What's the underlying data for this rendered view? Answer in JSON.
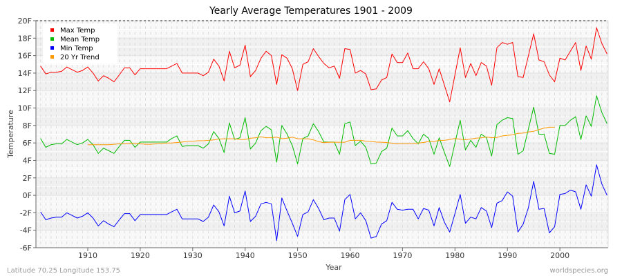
{
  "chart_data": {
    "type": "line",
    "title": "Yearly Average Temperatures 1901 - 2009",
    "xlabel": "Year",
    "ylabel": "Temperature",
    "xlim": [
      1900,
      2009
    ],
    "ylim": [
      -6,
      20
    ],
    "x_ticks": [
      "1910",
      "1920",
      "1930",
      "1940",
      "1950",
      "1960",
      "1970",
      "1980",
      "1990",
      "2000"
    ],
    "y_ticks": [
      "-6F",
      "-4F",
      "-2F",
      "0F",
      "2F",
      "4F",
      "6F",
      "8F",
      "10F",
      "12F",
      "14F",
      "16F",
      "18F",
      "20F"
    ],
    "grid": true,
    "legend_position": "top-left",
    "x_start": 1901,
    "series": [
      {
        "name": "Max Temp",
        "color": "#ff0000",
        "start": 1901,
        "values": [
          14.8,
          13.9,
          14.1,
          14.1,
          14.2,
          14.7,
          14.4,
          14.1,
          14.3,
          14.7,
          14.0,
          13.1,
          13.7,
          13.4,
          13.0,
          13.8,
          14.6,
          14.6,
          13.8,
          14.5,
          14.5,
          14.5,
          14.5,
          14.5,
          14.5,
          14.8,
          15.1,
          14.0,
          14.0,
          14.0,
          14.0,
          13.7,
          14.1,
          15.6,
          14.8,
          13.1,
          16.5,
          14.6,
          14.9,
          17.2,
          13.6,
          14.3,
          15.7,
          16.5,
          16.0,
          12.7,
          16.1,
          15.7,
          14.5,
          12.0,
          15.0,
          15.3,
          16.8,
          15.9,
          15.1,
          14.6,
          14.8,
          13.4,
          16.8,
          16.7,
          14.0,
          14.3,
          13.9,
          12.1,
          12.2,
          13.2,
          13.5,
          16.2,
          15.2,
          15.2,
          16.3,
          14.5,
          14.5,
          15.3,
          14.5,
          12.7,
          14.5,
          12.6,
          10.7,
          13.8,
          16.9,
          13.5,
          15.1,
          13.7,
          15.2,
          14.8,
          12.6,
          16.9,
          17.5,
          17.3,
          17.5,
          13.6,
          13.5,
          16.0,
          18.5,
          15.5,
          15.3,
          13.8,
          13.0,
          15.7,
          15.5,
          16.5,
          17.5,
          14.3,
          17.1,
          15.6,
          19.2,
          17.4,
          16.2
        ]
      },
      {
        "name": "Mean Temp",
        "color": "#00bb00",
        "start": 1901,
        "values": [
          6.5,
          5.5,
          5.8,
          5.9,
          5.9,
          6.4,
          6.1,
          5.8,
          6.0,
          6.4,
          5.8,
          4.8,
          5.4,
          5.1,
          4.8,
          5.6,
          6.3,
          6.3,
          5.5,
          6.1,
          6.1,
          6.1,
          6.1,
          6.1,
          6.1,
          6.5,
          6.8,
          5.6,
          5.7,
          5.7,
          5.7,
          5.4,
          5.9,
          7.3,
          6.5,
          4.9,
          8.3,
          6.4,
          6.6,
          8.9,
          5.3,
          6.0,
          7.4,
          7.9,
          7.5,
          3.8,
          8.0,
          7.0,
          5.7,
          3.6,
          6.5,
          6.8,
          8.2,
          7.3,
          6.1,
          6.1,
          6.1,
          4.7,
          8.2,
          8.4,
          5.7,
          6.2,
          5.5,
          3.6,
          3.7,
          5.0,
          5.4,
          7.7,
          6.8,
          6.8,
          7.4,
          6.5,
          5.9,
          7.0,
          6.5,
          4.7,
          6.6,
          4.9,
          3.3,
          6.0,
          8.6,
          5.2,
          6.3,
          5.5,
          7.0,
          6.6,
          4.5,
          8.1,
          8.6,
          8.9,
          8.8,
          4.7,
          5.1,
          7.6,
          10.1,
          7.0,
          7.0,
          4.8,
          4.7,
          8.0,
          8.0,
          8.6,
          9.0,
          6.4,
          9.1,
          7.9,
          11.4,
          9.5,
          8.2
        ]
      },
      {
        "name": "Min Temp",
        "color": "#0000ff",
        "start": 1901,
        "values": [
          -1.9,
          -2.8,
          -2.6,
          -2.5,
          -2.5,
          -2.0,
          -2.3,
          -2.6,
          -2.4,
          -2.0,
          -2.6,
          -3.5,
          -2.9,
          -3.3,
          -3.6,
          -2.8,
          -2.1,
          -2.1,
          -2.9,
          -2.2,
          -2.2,
          -2.2,
          -2.2,
          -2.2,
          -2.2,
          -1.9,
          -1.6,
          -2.7,
          -2.7,
          -2.7,
          -2.7,
          -3.0,
          -2.5,
          -1.1,
          -1.9,
          -3.5,
          -0.1,
          -2.0,
          -1.8,
          0.5,
          -3.0,
          -2.4,
          -1.0,
          -0.8,
          -1.0,
          -5.2,
          -0.3,
          -1.8,
          -3.2,
          -4.7,
          -2.2,
          -1.9,
          -0.5,
          -1.5,
          -2.8,
          -2.6,
          -2.6,
          -4.1,
          -0.5,
          0.1,
          -2.7,
          -2.0,
          -2.9,
          -4.9,
          -4.7,
          -3.3,
          -2.9,
          -0.8,
          -1.6,
          -1.7,
          -1.6,
          -1.6,
          -2.7,
          -1.5,
          -1.7,
          -3.5,
          -1.4,
          -3.1,
          -4.2,
          -2.1,
          0.1,
          -3.2,
          -2.5,
          -2.7,
          -1.4,
          -1.8,
          -3.7,
          -0.9,
          -0.6,
          0.4,
          -0.1,
          -4.2,
          -3.3,
          -1.4,
          1.6,
          -1.6,
          -1.5,
          -4.3,
          -3.6,
          0.1,
          0.2,
          0.6,
          0.4,
          -1.6,
          1.2,
          -0.1,
          3.5,
          1.3,
          0.0
        ]
      },
      {
        "name": "20 Yr Trend",
        "color": "#ff9900",
        "start": 1910,
        "values": [
          5.8,
          5.8,
          5.8,
          5.8,
          5.8,
          5.85,
          5.9,
          5.9,
          5.95,
          5.95,
          5.9,
          5.85,
          5.85,
          5.9,
          5.95,
          6.0,
          6.0,
          6.05,
          6.1,
          6.2,
          6.2,
          6.25,
          6.25,
          6.3,
          6.35,
          6.45,
          6.48,
          6.48,
          6.48,
          6.4,
          6.4,
          6.53,
          6.6,
          6.7,
          6.6,
          6.6,
          6.67,
          6.48,
          6.55,
          6.67,
          6.48,
          6.48,
          6.48,
          6.35,
          6.16,
          6.03,
          6.08,
          6.08,
          6.08,
          6.08,
          6.3,
          6.3,
          6.3,
          6.2,
          6.18,
          6.1,
          6.08,
          6.05,
          5.97,
          5.9,
          5.9,
          5.9,
          5.9,
          6.0,
          6.05,
          6.18,
          6.16,
          6.3,
          6.3,
          6.4,
          6.5,
          6.42,
          6.37,
          6.45,
          6.55,
          6.58,
          6.68,
          6.6,
          6.63,
          6.8,
          6.87,
          6.92,
          7.1,
          7.13,
          7.26,
          7.34,
          7.52,
          7.7,
          7.8,
          7.8
        ]
      }
    ]
  },
  "footer": {
    "location": "Latitude 70.25 Longitude 153.75",
    "source": "worldspecies.org"
  }
}
